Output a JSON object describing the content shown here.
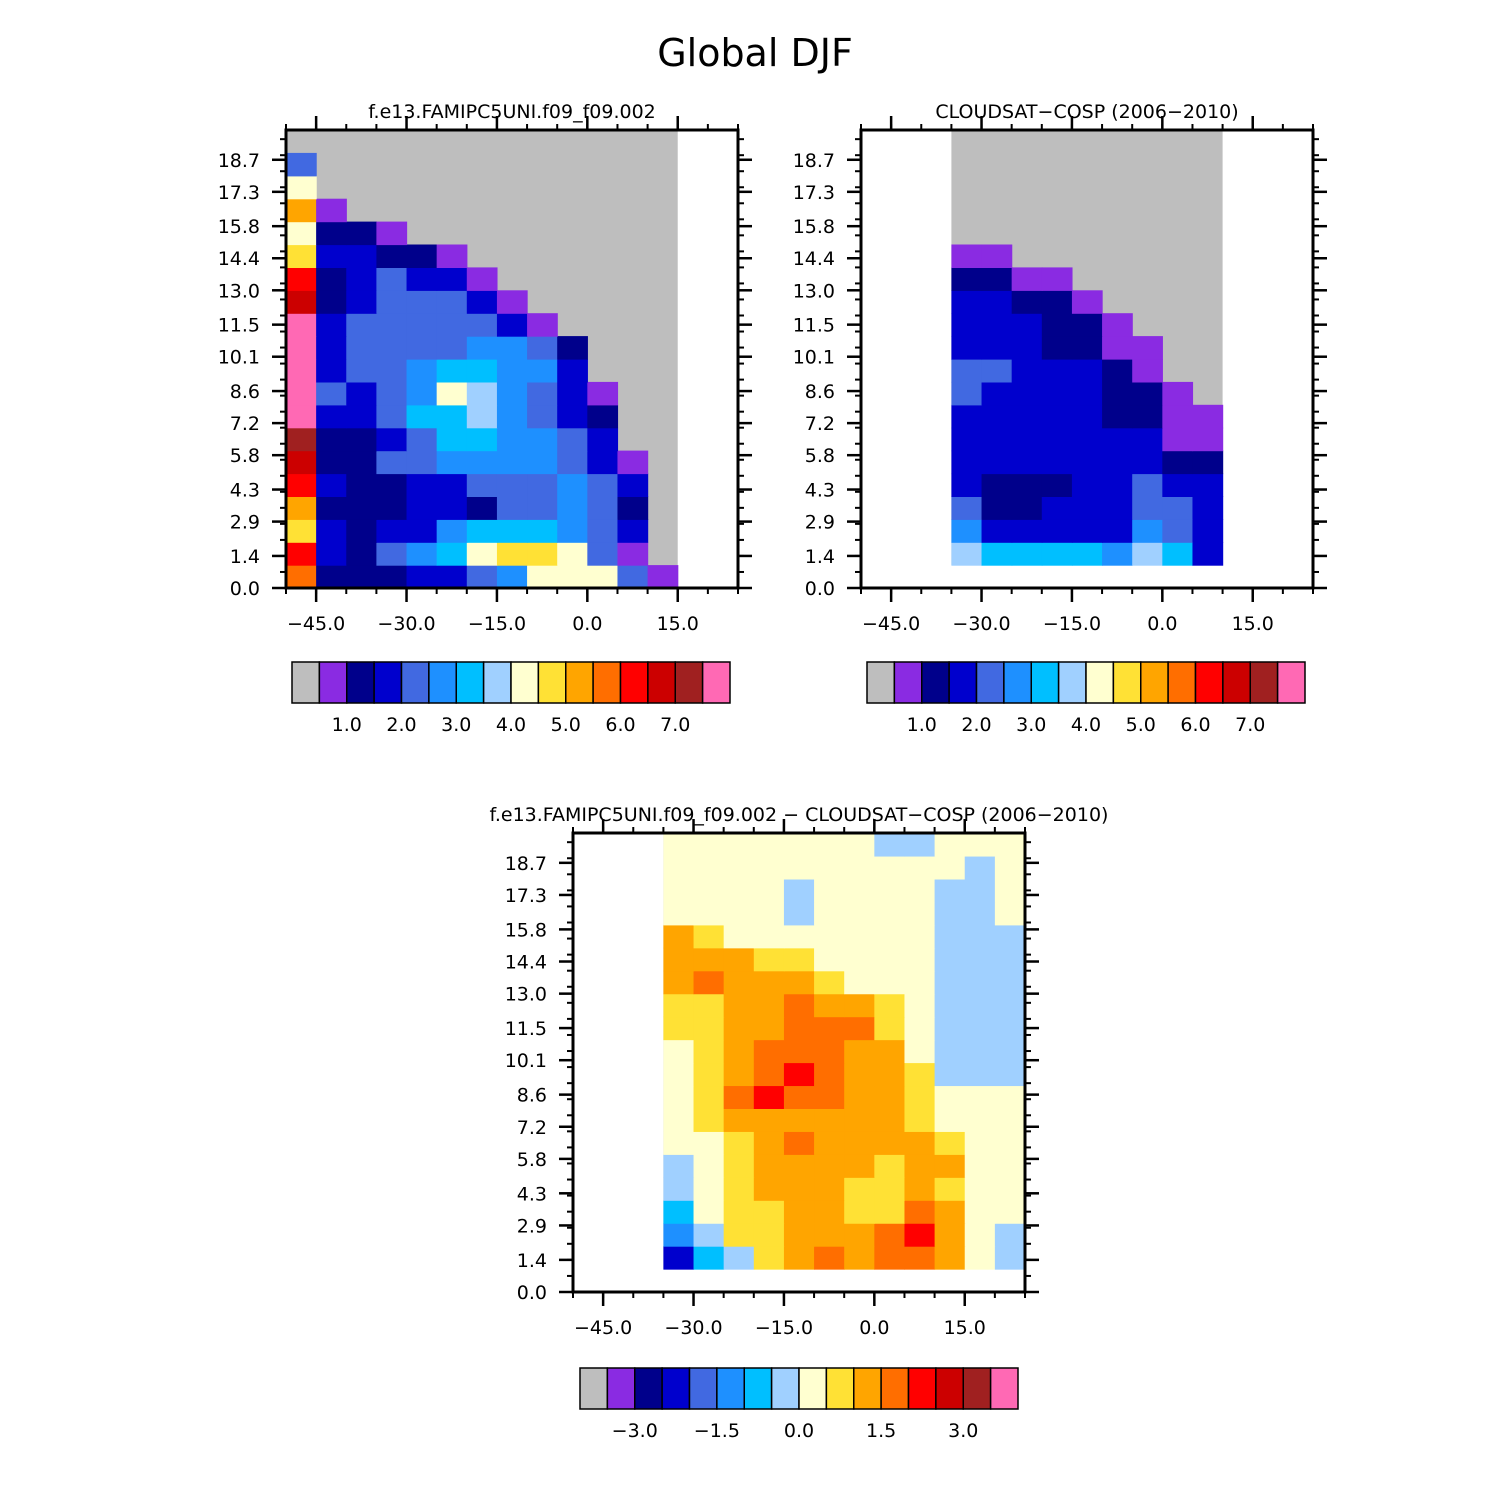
{
  "page": {
    "title": "Global DJF"
  },
  "colors": {
    "model_palette": [
      "#bebebe",
      "#8a2be2",
      "#00008b",
      "#0000cd",
      "#4169e1",
      "#1e90ff",
      "#00bfff",
      "#a0d0ff",
      "#ffffd0",
      "#ffe135",
      "#ffa500",
      "#ff6e00",
      "#ff0000",
      "#cc0000",
      "#a02020",
      "#ff69b4"
    ],
    "diff_palette": [
      "#bebebe",
      "#8a2be2",
      "#00008b",
      "#0000cd",
      "#4169e1",
      "#1e90ff",
      "#00bfff",
      "#a0d0ff",
      "#ffffd0",
      "#ffe135",
      "#ffa500",
      "#ff6e00",
      "#ff0000",
      "#cc0000",
      "#a02020",
      "#ff69b4"
    ],
    "missing": "#bebebe"
  },
  "chart_data": [
    {
      "type": "heatmap",
      "title": "f.e13.FAMIPC5UNI.f09_f09.002",
      "xlabel": "",
      "ylabel": "",
      "xlim": [
        -50,
        25
      ],
      "ylim": [
        0,
        20
      ],
      "x_ticks": [
        -45,
        -30,
        -15,
        0,
        15
      ],
      "x_tick_labels": [
        "−45.0",
        "−30.0",
        "−15.0",
        "0.0",
        "15.0"
      ],
      "y_ticks": [
        0,
        1.4,
        2.9,
        4.3,
        5.8,
        7.2,
        8.6,
        10.1,
        11.5,
        13.0,
        14.4,
        15.8,
        17.3,
        18.7
      ],
      "y_tick_labels": [
        "0.0",
        "1.4",
        "2.9",
        "4.3",
        "5.8",
        "7.2",
        "8.6",
        "10.1",
        "11.5",
        "13.0",
        "14.4",
        "15.8",
        "17.3",
        "18.7"
      ],
      "grid": false,
      "colorbar": {
        "labels": [
          "1.0",
          "2.0",
          "3.0",
          "4.0",
          "5.0",
          "6.0",
          "7.0"
        ],
        "label_after_box": [
          2,
          4,
          6,
          8,
          10,
          12,
          14
        ]
      },
      "x_edges": [
        -50,
        -45,
        -40,
        -35,
        -30,
        -25,
        -20,
        -15,
        -10,
        -5,
        0,
        5,
        10,
        15
      ],
      "y_edges": [
        0,
        1,
        2,
        3,
        4,
        5,
        6,
        7,
        8,
        9,
        10,
        11,
        12,
        13,
        14,
        15,
        16,
        17,
        18,
        19
      ],
      "z": [
        [
          11,
          2,
          2,
          2,
          3,
          3,
          4,
          5,
          8,
          8,
          8,
          4,
          1
        ],
        [
          12,
          3,
          2,
          4,
          5,
          6,
          8,
          9,
          9,
          8,
          4,
          1,
          -1
        ],
        [
          9,
          3,
          2,
          3,
          3,
          5,
          6,
          6,
          6,
          5,
          4,
          3,
          -1
        ],
        [
          10,
          2,
          2,
          2,
          3,
          3,
          2,
          4,
          4,
          5,
          4,
          2,
          -1
        ],
        [
          12,
          3,
          2,
          2,
          3,
          3,
          4,
          4,
          4,
          5,
          4,
          3,
          -1
        ],
        [
          13,
          2,
          2,
          4,
          4,
          5,
          5,
          5,
          5,
          4,
          3,
          1,
          -1
        ],
        [
          14,
          2,
          2,
          3,
          4,
          6,
          6,
          5,
          5,
          4,
          3,
          -1,
          -1
        ],
        [
          15,
          3,
          3,
          4,
          6,
          6,
          7,
          5,
          4,
          3,
          2,
          -1,
          -1
        ],
        [
          15,
          4,
          3,
          4,
          5,
          8,
          7,
          5,
          4,
          3,
          1,
          -1,
          -1
        ],
        [
          15,
          3,
          4,
          4,
          5,
          6,
          6,
          5,
          5,
          3,
          -1,
          -1,
          -1
        ],
        [
          15,
          3,
          4,
          4,
          4,
          4,
          5,
          5,
          4,
          2,
          -1,
          -1,
          -1
        ],
        [
          15,
          3,
          4,
          4,
          4,
          4,
          4,
          3,
          1,
          -1,
          -1,
          -1,
          -1
        ],
        [
          13,
          2,
          3,
          4,
          4,
          4,
          3,
          1,
          -1,
          -1,
          -1,
          -1,
          -1
        ],
        [
          12,
          2,
          3,
          4,
          3,
          3,
          1,
          -1,
          -1,
          -1,
          -1,
          -1,
          -1
        ],
        [
          9,
          3,
          3,
          2,
          2,
          1,
          -1,
          -1,
          -1,
          -1,
          -1,
          -1,
          -1
        ],
        [
          8,
          2,
          2,
          1,
          -1,
          -1,
          -1,
          -1,
          -1,
          -1,
          -1,
          -1,
          -1
        ],
        [
          10,
          1,
          -1,
          -1,
          -1,
          -1,
          -1,
          -1,
          -1,
          -1,
          -1,
          -1,
          -1
        ],
        [
          8,
          -1,
          -1,
          -1,
          -1,
          -1,
          -1,
          -1,
          -1,
          -1,
          -1,
          -1,
          -1
        ],
        [
          4,
          -1,
          -1,
          -1,
          -1,
          -1,
          -1,
          -1,
          -1,
          -1,
          -1,
          -1,
          -1
        ]
      ]
    },
    {
      "type": "heatmap",
      "title": "CLOUDSAT−COSP (2006−2010)",
      "xlabel": "",
      "ylabel": "",
      "xlim": [
        -50,
        25
      ],
      "ylim": [
        0,
        20
      ],
      "x_ticks": [
        -45,
        -30,
        -15,
        0,
        15
      ],
      "x_tick_labels": [
        "−45.0",
        "−30.0",
        "−15.0",
        "0.0",
        "15.0"
      ],
      "y_ticks": [
        0,
        1.4,
        2.9,
        4.3,
        5.8,
        7.2,
        8.6,
        10.1,
        11.5,
        13.0,
        14.4,
        15.8,
        17.3,
        18.7
      ],
      "y_tick_labels": [
        "0.0",
        "1.4",
        "2.9",
        "4.3",
        "5.8",
        "7.2",
        "8.6",
        "10.1",
        "11.5",
        "13.0",
        "14.4",
        "15.8",
        "17.3",
        "18.7"
      ],
      "grid": false,
      "colorbar": {
        "labels": [
          "1.0",
          "2.0",
          "3.0",
          "4.0",
          "5.0",
          "6.0",
          "7.0"
        ],
        "label_after_box": [
          2,
          4,
          6,
          8,
          10,
          12,
          14
        ]
      },
      "x_edges": [
        -35,
        -30,
        -25,
        -20,
        -15,
        -10,
        -5,
        0,
        5,
        10
      ],
      "y_edges": [
        1,
        2,
        3,
        4,
        5,
        6,
        7,
        8,
        9,
        10,
        11,
        12,
        13,
        14,
        15,
        16,
        17,
        18,
        19,
        20
      ],
      "z": [
        [
          7,
          6,
          6,
          6,
          6,
          5,
          7,
          6,
          3
        ],
        [
          5,
          3,
          3,
          3,
          3,
          3,
          5,
          4,
          3
        ],
        [
          4,
          2,
          2,
          3,
          3,
          3,
          4,
          4,
          3
        ],
        [
          3,
          2,
          2,
          2,
          3,
          3,
          4,
          3,
          3
        ],
        [
          3,
          3,
          3,
          3,
          3,
          3,
          3,
          2,
          2
        ],
        [
          3,
          3,
          3,
          3,
          3,
          3,
          3,
          1,
          1
        ],
        [
          3,
          3,
          3,
          3,
          3,
          2,
          2,
          1,
          1
        ],
        [
          4,
          3,
          3,
          3,
          3,
          2,
          2,
          1,
          -1
        ],
        [
          4,
          4,
          3,
          3,
          3,
          2,
          1,
          -1,
          -1
        ],
        [
          3,
          3,
          3,
          2,
          2,
          1,
          1,
          -1,
          -1
        ],
        [
          3,
          3,
          3,
          2,
          2,
          1,
          -1,
          -1,
          -1
        ],
        [
          3,
          3,
          2,
          2,
          1,
          -1,
          -1,
          -1,
          -1
        ],
        [
          2,
          2,
          1,
          1,
          -1,
          -1,
          -1,
          -1,
          -1
        ],
        [
          1,
          1,
          -1,
          -1,
          -1,
          -1,
          -1,
          -1,
          -1
        ],
        [
          -1,
          -1,
          -1,
          -1,
          -1,
          -1,
          -1,
          -1,
          -1
        ],
        [
          -1,
          -1,
          -1,
          -1,
          -1,
          -1,
          -1,
          -1,
          -1
        ],
        [
          -1,
          -1,
          -1,
          -1,
          -1,
          -1,
          -1,
          -1,
          -1
        ],
        [
          -1,
          -1,
          -1,
          -1,
          -1,
          -1,
          -1,
          -1,
          -1
        ],
        [
          -1,
          -1,
          -1,
          -1,
          -1,
          -1,
          -1,
          -1,
          -1
        ]
      ]
    },
    {
      "type": "heatmap",
      "title": "f.e13.FAMIPC5UNI.f09_f09.002 − CLOUDSAT−COSP (2006−2010)",
      "xlabel": "",
      "ylabel": "",
      "xlim": [
        -50,
        25
      ],
      "ylim": [
        0,
        20
      ],
      "x_ticks": [
        -45,
        -30,
        -15,
        0,
        15
      ],
      "x_tick_labels": [
        "−45.0",
        "−30.0",
        "−15.0",
        "0.0",
        "15.0"
      ],
      "y_ticks": [
        0,
        1.4,
        2.9,
        4.3,
        5.8,
        7.2,
        8.6,
        10.1,
        11.5,
        13.0,
        14.4,
        15.8,
        17.3,
        18.7
      ],
      "y_tick_labels": [
        "0.0",
        "1.4",
        "2.9",
        "4.3",
        "5.8",
        "7.2",
        "8.6",
        "10.1",
        "11.5",
        "13.0",
        "14.4",
        "15.8",
        "17.3",
        "18.7"
      ],
      "grid": false,
      "colorbar": {
        "labels": [
          "−3.0",
          "−1.5",
          "0.0",
          "1.5",
          "3.0"
        ],
        "label_after_box": [
          2,
          5,
          8,
          11,
          14
        ]
      },
      "x_edges": [
        -35,
        -30,
        -25,
        -20,
        -15,
        -10,
        -5,
        0,
        5,
        10,
        15,
        20,
        25
      ],
      "y_edges": [
        1,
        2,
        3,
        4,
        5,
        6,
        7,
        8,
        9,
        10,
        11,
        12,
        13,
        14,
        15,
        16,
        17,
        18,
        19,
        20
      ],
      "z": [
        [
          3,
          6,
          7,
          9,
          10,
          11,
          10,
          11,
          11,
          10,
          8,
          7
        ],
        [
          5,
          7,
          9,
          9,
          10,
          10,
          10,
          11,
          12,
          10,
          8,
          7
        ],
        [
          6,
          8,
          9,
          9,
          10,
          10,
          9,
          9,
          11,
          10,
          8,
          8
        ],
        [
          7,
          8,
          9,
          10,
          10,
          10,
          9,
          9,
          10,
          9,
          8,
          8
        ],
        [
          7,
          8,
          9,
          10,
          10,
          10,
          10,
          9,
          10,
          10,
          8,
          8
        ],
        [
          8,
          8,
          9,
          10,
          11,
          10,
          10,
          10,
          10,
          9,
          8,
          8
        ],
        [
          8,
          9,
          10,
          10,
          10,
          10,
          10,
          10,
          9,
          8,
          8,
          8
        ],
        [
          8,
          9,
          11,
          12,
          11,
          11,
          10,
          10,
          9,
          8,
          8,
          8
        ],
        [
          8,
          9,
          10,
          11,
          12,
          11,
          10,
          10,
          9,
          7,
          7,
          7
        ],
        [
          8,
          9,
          10,
          11,
          11,
          11,
          10,
          10,
          8,
          7,
          7,
          7
        ],
        [
          9,
          9,
          10,
          10,
          11,
          11,
          11,
          9,
          8,
          7,
          7,
          7
        ],
        [
          9,
          9,
          10,
          10,
          11,
          10,
          10,
          9,
          8,
          7,
          7,
          7
        ],
        [
          10,
          11,
          10,
          10,
          10,
          9,
          8,
          8,
          8,
          7,
          7,
          7
        ],
        [
          10,
          10,
          10,
          9,
          9,
          8,
          8,
          8,
          8,
          7,
          7,
          7
        ],
        [
          10,
          9,
          8,
          8,
          8,
          8,
          8,
          8,
          8,
          7,
          7,
          7
        ],
        [
          8,
          8,
          8,
          8,
          7,
          8,
          8,
          8,
          8,
          7,
          7,
          8
        ],
        [
          8,
          8,
          8,
          8,
          7,
          8,
          8,
          8,
          8,
          7,
          7,
          8
        ],
        [
          8,
          8,
          8,
          8,
          8,
          8,
          8,
          8,
          8,
          8,
          7,
          8
        ],
        [
          8,
          8,
          8,
          8,
          8,
          8,
          8,
          7,
          7,
          8,
          8,
          8
        ]
      ]
    }
  ]
}
